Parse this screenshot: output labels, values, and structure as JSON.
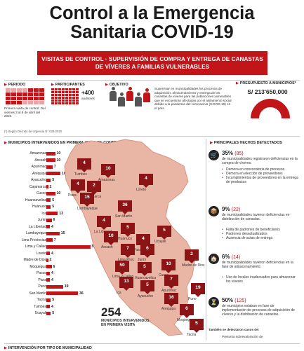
{
  "header": {
    "title_line1": "Control a la Emergencia",
    "title_line2": "Sanitaria COVID-19",
    "banner_line1": "VISITAS DE CONTROL · SUPERVISIÓN DE COMPRA Y ENTREGA DE CANASTAS",
    "banner_line2": "DE VÍVERES A FAMILIAS VULNERABLES"
  },
  "top": {
    "periodo_label": "PERIODO",
    "periodo_text": "Primera visita de control: Del viernes 3 al 8 de abril del 2020.",
    "participantes_label": "PARTICIPANTES",
    "participantes_value": "+400",
    "participantes_unit": "auditores",
    "objetivo_label": "OBJETIVO",
    "objetivo_text": "Supervisar en municipalidades los procesos de adquisición, almacenamiento y entrega de las canastas de víveres para las poblaciones vulnerables que se encuentran afectadas por el aislamiento social debido a la pandemia del coronavirus (COVID-19) en el país.",
    "presupuesto_label": "PRESUPUESTO A MUNICIPIOS*",
    "presupuesto_value": "S/ 213'650,000",
    "footnote": "(*) Según Decreto de Urgencia N° 033-2020"
  },
  "bars_title": "MUNICIPIOS INTERVENIDOS EN PRIMERA VISITA DE CONTROL",
  "bars": [
    {
      "name": "Amazonas",
      "value": 10
    },
    {
      "name": "Áncash",
      "value": 10
    },
    {
      "name": "Apurímac",
      "value": 7
    },
    {
      "name": "Arequipa",
      "value": 16
    },
    {
      "name": "Ayacucho",
      "value": 5
    },
    {
      "name": "Cajamarca",
      "value": 2
    },
    {
      "name": "Cusco",
      "value": 10
    },
    {
      "name": "Huancavelica",
      "value": 5
    },
    {
      "name": "Huánuco",
      "value": 5
    },
    {
      "name": "Ica",
      "value": 13
    },
    {
      "name": "Junín",
      "value": 6
    },
    {
      "name": "La Libertad",
      "value": 4
    },
    {
      "name": "Lambayeque",
      "value": 15
    },
    {
      "name": "Lima Provincias",
      "value": 7
    },
    {
      "name": "Lima y Callao",
      "value": 50
    },
    {
      "name": "Loreto",
      "value": 4
    },
    {
      "name": "Madre de Dios",
      "value": 2
    },
    {
      "name": "Moquegua",
      "value": 6
    },
    {
      "name": "Pasco",
      "value": 4
    },
    {
      "name": "Piura",
      "value": 4
    },
    {
      "name": "Puno",
      "value": 19
    },
    {
      "name": "San Martín",
      "value": 36
    },
    {
      "name": "Tacna",
      "value": 5
    },
    {
      "name": "Tumbes",
      "value": 4
    },
    {
      "name": "Ucayali",
      "value": 5
    }
  ],
  "map": {
    "total": "254",
    "total_caption_line1": "MUNICIPIOS INTERVENIDOS",
    "total_caption_line2": "EN PRIMERA VISITA",
    "markers": [
      {
        "value": "4",
        "label": "Tumbes"
      },
      {
        "value": "10",
        "label": "Amazonas"
      },
      {
        "value": "4",
        "label": "Loreto"
      },
      {
        "value": "4",
        "label": "Piura"
      },
      {
        "value": "2",
        "label": "Cajamarca"
      },
      {
        "value": "15",
        "label": "Lambayeque"
      },
      {
        "value": "36",
        "label": "San Martín"
      },
      {
        "value": "4",
        "label": "La Libertad"
      },
      {
        "value": "5",
        "label": "Huánuco"
      },
      {
        "value": "10",
        "label": "Áncash"
      },
      {
        "value": "4",
        "label": "Pasco"
      },
      {
        "value": "5",
        "label": "Ucayali"
      },
      {
        "value": "7",
        "label": "Lima Prov."
      },
      {
        "value": "6",
        "label": "Junín"
      },
      {
        "value": "50",
        "label": "Lima y Callao"
      },
      {
        "value": "5",
        "label": "Huancavelica"
      },
      {
        "value": "10",
        "label": "Cusco"
      },
      {
        "value": "2",
        "label": "Madre de Dios"
      },
      {
        "value": "13",
        "label": "Ica"
      },
      {
        "value": "5",
        "label": "Ayacucho"
      },
      {
        "value": "7",
        "label": "Apurímac"
      },
      {
        "value": "19",
        "label": "Puno"
      },
      {
        "value": "16",
        "label": "Arequipa"
      },
      {
        "value": "6",
        "label": "Moquegua"
      },
      {
        "value": "5",
        "label": "Tacna"
      }
    ]
  },
  "findings": {
    "title": "PRINCIPALES HECHOS DETECTADOS",
    "items": [
      {
        "pct": "35%",
        "count": "(85)",
        "desc": "de municipalidades registraron deficiencias en la compra de víveres.",
        "bullets": [
          "Demora en convocatoria de procesos",
          "Demora en elección de proveedores",
          "Incumplimientos de proveedores en la entrega de productos"
        ]
      },
      {
        "pct": "9%",
        "count": "(22)",
        "desc": "de municipalidades tuvieron deficiencias en distribución de canastas.",
        "bullets": [
          "Falta de padrones de beneficiarios",
          "Padrones desactualizados",
          "Ausencia de actas de entrega"
        ]
      },
      {
        "pct": "6%",
        "count": "(14)",
        "desc": "de municipalidades tuvieron deficiencias en la fase de almacenamiento:",
        "bullets": [
          "Uso de locales inadecuados para almacenar los víveres"
        ]
      },
      {
        "pct": "50%",
        "count": "(125)",
        "desc": "de municipios estaban en fase de implementación de procesos de adquisición de víveres y la distribución de canastas.",
        "bullets": []
      }
    ],
    "also_text": "También se detectaron casos de:",
    "also_item": "Presunta sobrevaloración de"
  },
  "bottom_label": "INTERVENCIÓN POR TIPO DE MUNICIPALIDAD",
  "colors": {
    "accent": "#c1151a",
    "marker": "#8b1416",
    "map": "#e9b6a6"
  }
}
